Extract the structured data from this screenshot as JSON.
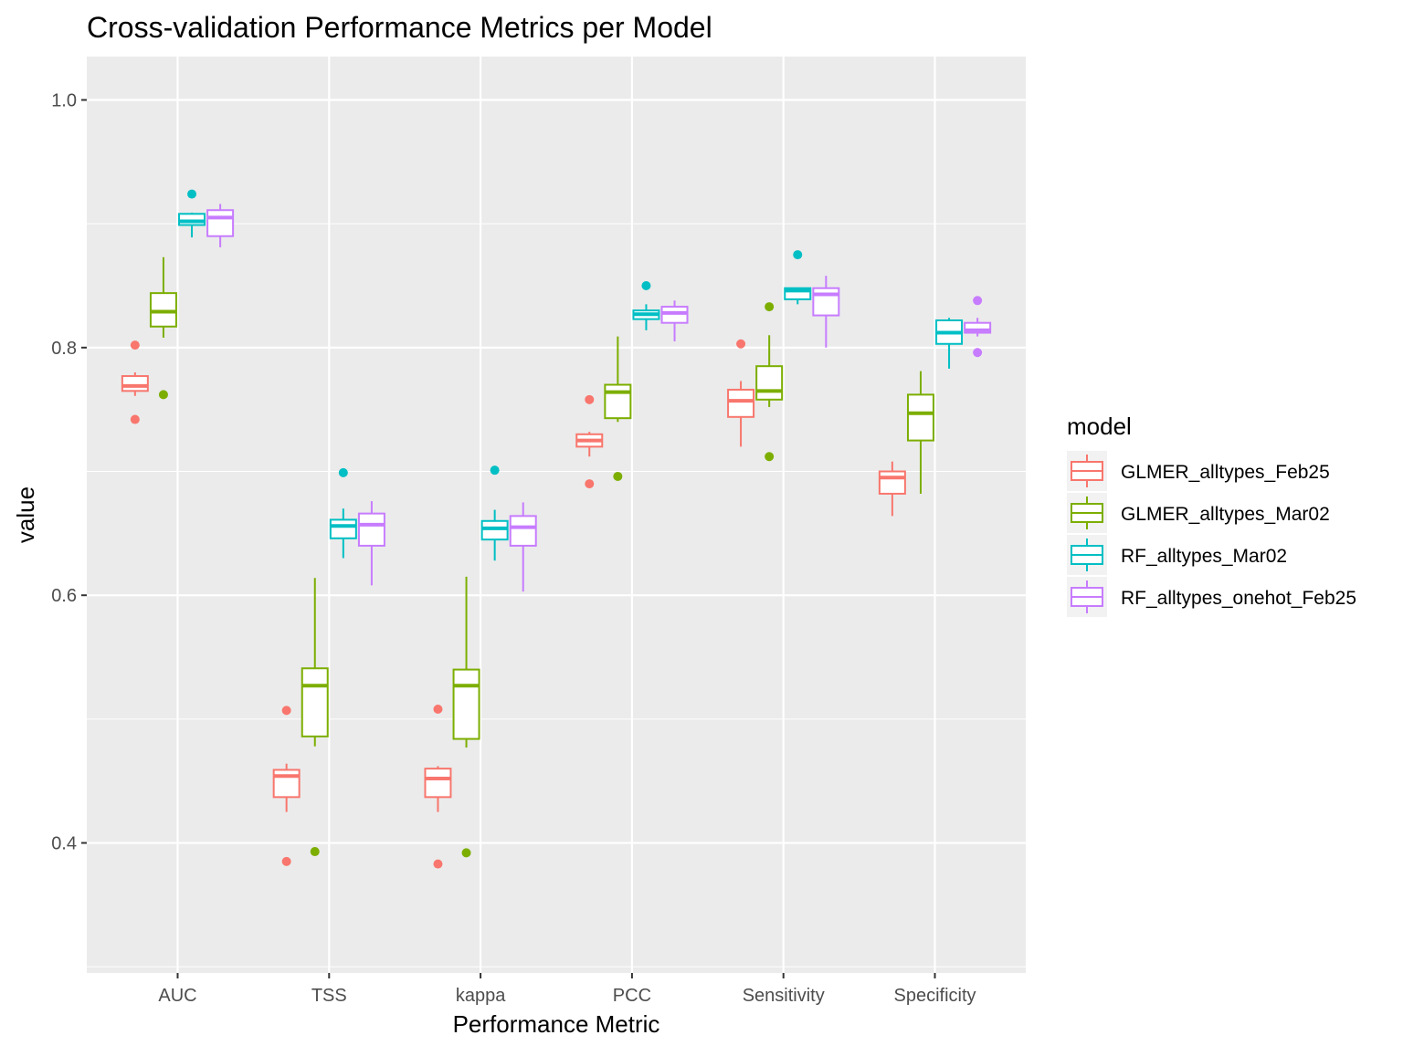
{
  "chart_data": {
    "type": "boxplot",
    "title": "Cross-validation Performance Metrics per Model",
    "xlabel": "Performance Metric",
    "ylabel": "value",
    "categories": [
      "AUC",
      "TSS",
      "kappa",
      "PCC",
      "Sensitivity",
      "Specificity"
    ],
    "ylim": [
      0.295,
      1.035
    ],
    "yticks": [
      0.4,
      0.6,
      0.8,
      1.0
    ],
    "ytick_labels": [
      "0.4",
      "0.6",
      "0.8",
      "1.0"
    ],
    "grid": true,
    "legend": {
      "title": "model",
      "position": "right"
    },
    "series": [
      {
        "name": "GLMER_alltypes_Feb25",
        "color": "#F8766D",
        "boxes": [
          {
            "lower_whisker": 0.761,
            "q1": 0.765,
            "median": 0.769,
            "q3": 0.777,
            "upper_whisker": 0.78,
            "outliers": [
              0.742,
              0.802
            ]
          },
          {
            "lower_whisker": 0.425,
            "q1": 0.437,
            "median": 0.454,
            "q3": 0.459,
            "upper_whisker": 0.464,
            "outliers": [
              0.385,
              0.507
            ]
          },
          {
            "lower_whisker": 0.425,
            "q1": 0.437,
            "median": 0.452,
            "q3": 0.46,
            "upper_whisker": 0.462,
            "outliers": [
              0.383,
              0.508
            ]
          },
          {
            "lower_whisker": 0.712,
            "q1": 0.72,
            "median": 0.725,
            "q3": 0.73,
            "upper_whisker": 0.732,
            "outliers": [
              0.69,
              0.758
            ]
          },
          {
            "lower_whisker": 0.72,
            "q1": 0.744,
            "median": 0.757,
            "q3": 0.766,
            "upper_whisker": 0.773,
            "outliers": [
              0.803
            ]
          },
          {
            "lower_whisker": 0.664,
            "q1": 0.682,
            "median": 0.695,
            "q3": 0.7,
            "upper_whisker": 0.708,
            "outliers": []
          }
        ]
      },
      {
        "name": "GLMER_alltypes_Mar02",
        "color": "#7CAE00",
        "boxes": [
          {
            "lower_whisker": 0.808,
            "q1": 0.817,
            "median": 0.829,
            "q3": 0.844,
            "upper_whisker": 0.873,
            "outliers": [
              0.762
            ]
          },
          {
            "lower_whisker": 0.478,
            "q1": 0.486,
            "median": 0.527,
            "q3": 0.541,
            "upper_whisker": 0.614,
            "outliers": [
              0.393
            ]
          },
          {
            "lower_whisker": 0.477,
            "q1": 0.484,
            "median": 0.527,
            "q3": 0.54,
            "upper_whisker": 0.615,
            "outliers": [
              0.392
            ]
          },
          {
            "lower_whisker": 0.74,
            "q1": 0.743,
            "median": 0.764,
            "q3": 0.77,
            "upper_whisker": 0.809,
            "outliers": [
              0.696
            ]
          },
          {
            "lower_whisker": 0.752,
            "q1": 0.758,
            "median": 0.765,
            "q3": 0.785,
            "upper_whisker": 0.81,
            "outliers": [
              0.712,
              0.833
            ]
          },
          {
            "lower_whisker": 0.682,
            "q1": 0.725,
            "median": 0.747,
            "q3": 0.762,
            "upper_whisker": 0.781,
            "outliers": []
          }
        ]
      },
      {
        "name": "RF_alltypes_Mar02",
        "color": "#00BFC4",
        "boxes": [
          {
            "lower_whisker": 0.889,
            "q1": 0.899,
            "median": 0.902,
            "q3": 0.908,
            "upper_whisker": 0.909,
            "outliers": [
              0.924
            ]
          },
          {
            "lower_whisker": 0.63,
            "q1": 0.646,
            "median": 0.656,
            "q3": 0.661,
            "upper_whisker": 0.67,
            "outliers": [
              0.699
            ]
          },
          {
            "lower_whisker": 0.628,
            "q1": 0.645,
            "median": 0.654,
            "q3": 0.66,
            "upper_whisker": 0.669,
            "outliers": [
              0.701
            ]
          },
          {
            "lower_whisker": 0.814,
            "q1": 0.823,
            "median": 0.827,
            "q3": 0.83,
            "upper_whisker": 0.835,
            "outliers": [
              0.85
            ]
          },
          {
            "lower_whisker": 0.835,
            "q1": 0.839,
            "median": 0.846,
            "q3": 0.848,
            "upper_whisker": 0.848,
            "outliers": [
              0.875
            ]
          },
          {
            "lower_whisker": 0.783,
            "q1": 0.803,
            "median": 0.812,
            "q3": 0.822,
            "upper_whisker": 0.824,
            "outliers": []
          }
        ]
      },
      {
        "name": "RF_alltypes_onehot_Feb25",
        "color": "#C77CFF",
        "boxes": [
          {
            "lower_whisker": 0.881,
            "q1": 0.89,
            "median": 0.905,
            "q3": 0.911,
            "upper_whisker": 0.916,
            "outliers": []
          },
          {
            "lower_whisker": 0.608,
            "q1": 0.64,
            "median": 0.657,
            "q3": 0.666,
            "upper_whisker": 0.676,
            "outliers": []
          },
          {
            "lower_whisker": 0.603,
            "q1": 0.64,
            "median": 0.655,
            "q3": 0.664,
            "upper_whisker": 0.675,
            "outliers": []
          },
          {
            "lower_whisker": 0.805,
            "q1": 0.82,
            "median": 0.828,
            "q3": 0.833,
            "upper_whisker": 0.838,
            "outliers": []
          },
          {
            "lower_whisker": 0.8,
            "q1": 0.826,
            "median": 0.843,
            "q3": 0.848,
            "upper_whisker": 0.858,
            "outliers": []
          },
          {
            "lower_whisker": 0.809,
            "q1": 0.812,
            "median": 0.814,
            "q3": 0.82,
            "upper_whisker": 0.824,
            "outliers": [
              0.796,
              0.838
            ]
          }
        ]
      }
    ]
  }
}
